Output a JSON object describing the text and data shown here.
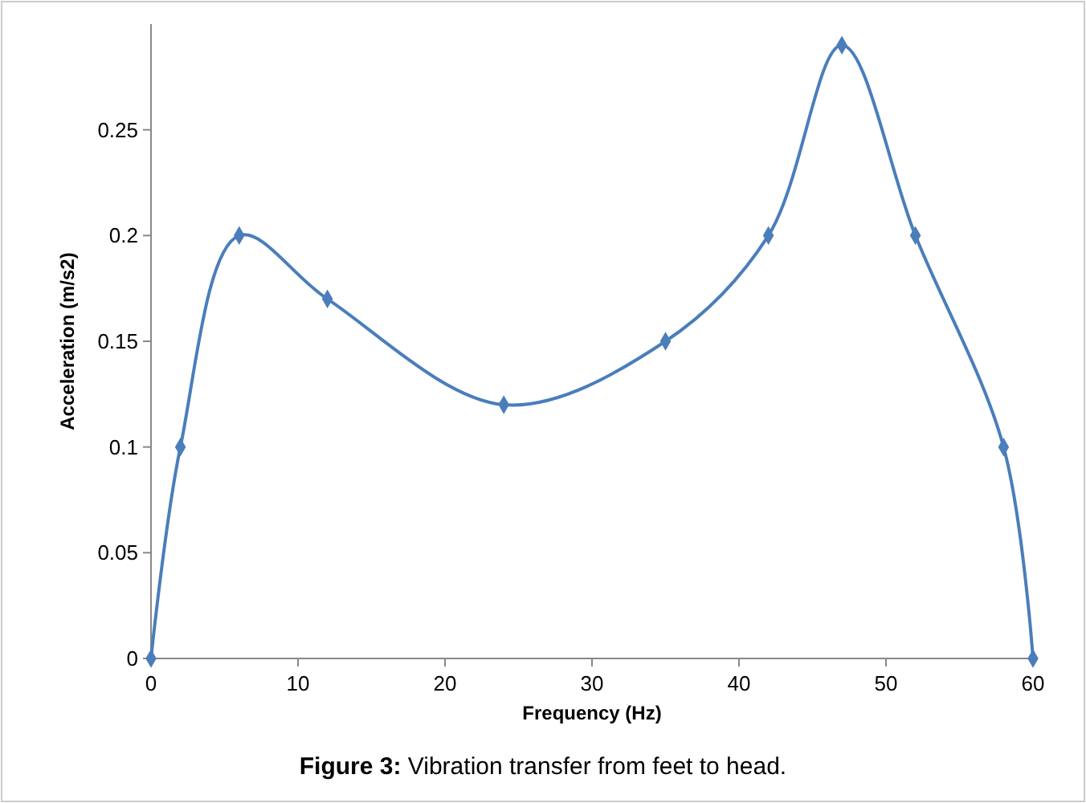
{
  "chart_data": {
    "type": "line",
    "xlabel": "Frequency (Hz)",
    "ylabel": "Acceleration (m/s2)",
    "x": [
      0,
      2,
      6,
      12,
      24,
      35,
      42,
      47,
      52,
      58,
      60
    ],
    "series": [
      {
        "color": "#4a7ebb",
        "values": [
          0,
          0.1,
          0.2,
          0.17,
          0.12,
          0.15,
          0.2,
          0.29,
          0.2,
          0.1,
          0
        ]
      }
    ],
    "xlim": [
      0,
      60
    ],
    "xticks": [
      0,
      10,
      20,
      30,
      40,
      50,
      60
    ],
    "ylim": [
      0,
      0.3
    ],
    "yticks": [
      0,
      0.05,
      0.1,
      0.15,
      0.2,
      0.25
    ],
    "marker": "diamond",
    "grid": false,
    "annotations": [
      "Figure 3: Vibration transfer from feet to head."
    ]
  }
}
